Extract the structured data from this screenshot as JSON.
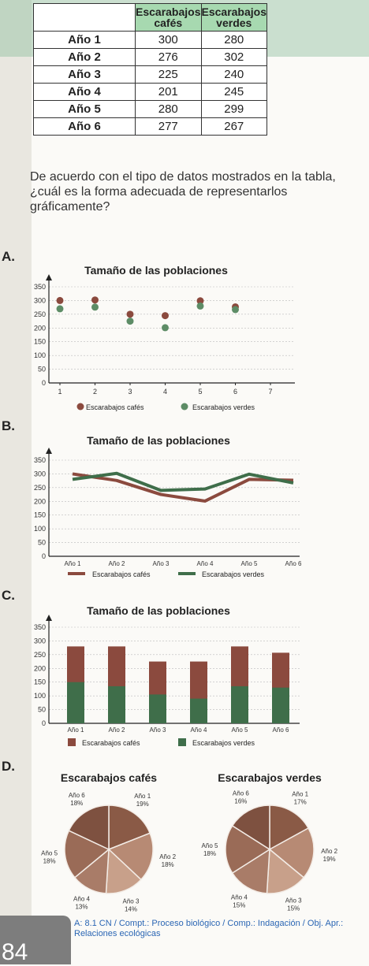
{
  "table": {
    "headers": [
      "Escarabajos\ncafés",
      "Escarabajos\nverdes"
    ],
    "rows": [
      {
        "label": "Año 1",
        "cafes": "300",
        "verdes": "280"
      },
      {
        "label": "Año 2",
        "cafes": "276",
        "verdes": "302"
      },
      {
        "label": "Año 3",
        "cafes": "225",
        "verdes": "240"
      },
      {
        "label": "Año 4",
        "cafes": "201",
        "verdes": "245"
      },
      {
        "label": "Año 5",
        "cafes": "280",
        "verdes": "299"
      },
      {
        "label": "Año 6",
        "cafes": "277",
        "verdes": "267"
      }
    ]
  },
  "question": "De acuerdo con el tipo de datos mostrados en la tabla, ¿cuál es la forma adecuada de representarlos gráficamente?",
  "options": {
    "a": "A.",
    "b": "B.",
    "c": "C.",
    "d": "D."
  },
  "colors": {
    "brown": "#8b4a3e",
    "green": "#3f6e4a",
    "green_scatter": "#5d8c66",
    "table_header": "#a7d9b0"
  },
  "chart_data": [
    {
      "type": "scatter",
      "title": "Tamaño de las poblaciones",
      "x": [
        1,
        2,
        3,
        4,
        5,
        6
      ],
      "xticks": [
        "1",
        "2",
        "3",
        "4",
        "5",
        "6",
        "7"
      ],
      "yticks": [
        "0",
        "50",
        "100",
        "150",
        "200",
        "250",
        "300",
        "350"
      ],
      "ylim": [
        0,
        350
      ],
      "series": [
        {
          "name": "Escarabajos cafés",
          "values": [
            300,
            302,
            250,
            245,
            299,
            277
          ]
        },
        {
          "name": "Escarabajos verdes",
          "values": [
            270,
            276,
            225,
            201,
            280,
            267
          ]
        }
      ],
      "legend": "bottom"
    },
    {
      "type": "line",
      "title": "Tamaño de las poblaciones",
      "categories": [
        "Año 1",
        "Año 2",
        "Año 3",
        "Año 4",
        "Año 5",
        "Año 6"
      ],
      "yticks": [
        "0",
        "50",
        "100",
        "150",
        "200",
        "250",
        "300",
        "350"
      ],
      "ylim": [
        0,
        350
      ],
      "series": [
        {
          "name": "Escarabajos cafés",
          "values": [
            300,
            276,
            225,
            201,
            280,
            277
          ]
        },
        {
          "name": "Escarabajos verdes",
          "values": [
            280,
            302,
            240,
            245,
            299,
            267
          ]
        }
      ],
      "legend": "bottom"
    },
    {
      "type": "bar",
      "title": "Tamaño de las poblaciones",
      "categories": [
        "Año 1",
        "Año 2",
        "Año 3",
        "Año 4",
        "Año 5",
        "Año 6"
      ],
      "yticks": [
        "0",
        "50",
        "100",
        "150",
        "200",
        "250",
        "300",
        "350"
      ],
      "ylim": [
        0,
        350
      ],
      "series": [
        {
          "name": "Escarabajos cafés",
          "values": [
            280,
            280,
            225,
            225,
            280,
            257
          ]
        },
        {
          "name": "Escarabajos verdes",
          "values": [
            150,
            135,
            105,
            90,
            135,
            130
          ]
        }
      ],
      "legend": "bottom"
    },
    {
      "type": "pie",
      "title": "Escarabajos cafés",
      "labels": [
        "Año 1",
        "Año 2",
        "Año 3",
        "Año 4",
        "Año 5",
        "Año 6"
      ],
      "values": [
        19,
        18,
        14,
        13,
        18,
        18
      ],
      "value_labels": [
        "19%",
        "18%",
        "14%",
        "13%",
        "18%",
        "18%"
      ]
    },
    {
      "type": "pie",
      "title": "Escarabajos verdes",
      "labels": [
        "Año 1",
        "Año 2",
        "Año 3",
        "Año 4",
        "Año 5",
        "Año 6"
      ],
      "values": [
        17,
        19,
        15,
        15,
        18,
        16
      ],
      "value_labels": [
        "17%",
        "19%",
        "15%",
        "15%",
        "18%",
        "16%"
      ]
    }
  ],
  "footer": {
    "page": "84",
    "text": "A: 8.1 CN / Compt.: Proceso biológico / Comp.: Indagación / Obj. Apr.:",
    "text2": "Relaciones ecológicas"
  }
}
